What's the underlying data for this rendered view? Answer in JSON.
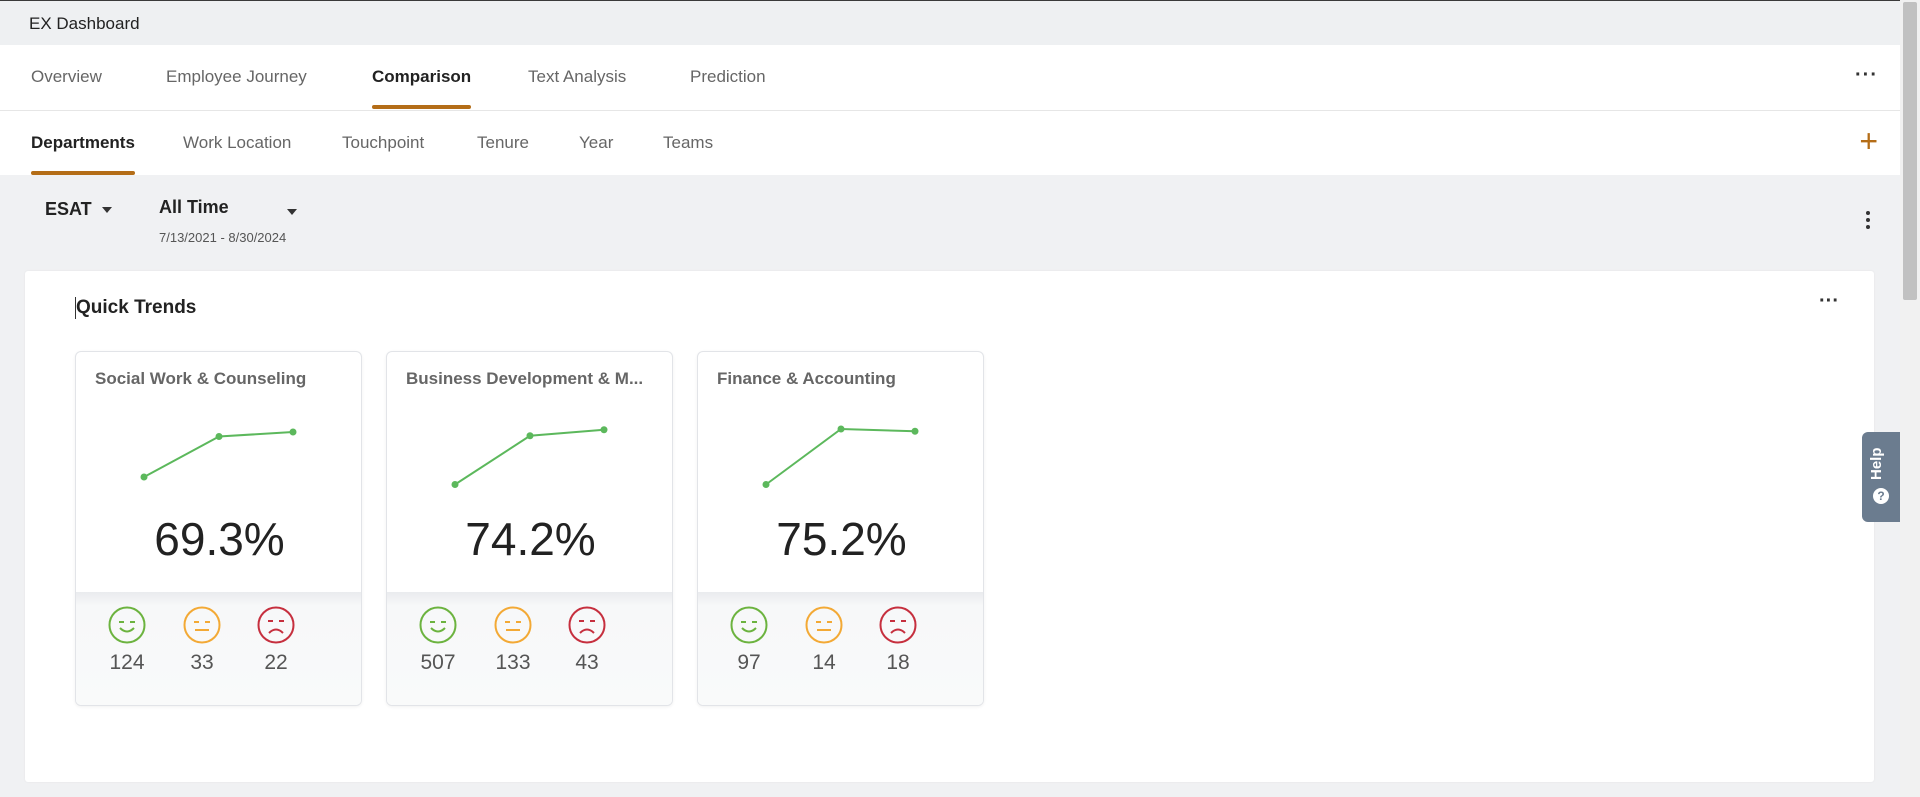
{
  "app": {
    "title": "EX Dashboard"
  },
  "main_tabs": [
    {
      "label": "Overview"
    },
    {
      "label": "Employee Journey"
    },
    {
      "label": "Comparison",
      "active": true
    },
    {
      "label": "Text Analysis"
    },
    {
      "label": "Prediction"
    }
  ],
  "sub_tabs": [
    {
      "label": "Departments",
      "active": true
    },
    {
      "label": "Work Location"
    },
    {
      "label": "Touchpoint"
    },
    {
      "label": "Tenure"
    },
    {
      "label": "Year"
    },
    {
      "label": "Teams"
    }
  ],
  "filters": {
    "metric": "ESAT",
    "time_label": "All Time",
    "date_range": "7/13/2021 - 8/30/2024"
  },
  "quick_trends": {
    "title": "Quick Trends",
    "cards": [
      {
        "name": "Social Work & Counseling",
        "score": "69.3%",
        "trend": [
          0.2,
          0.74,
          0.8
        ],
        "positive": "124",
        "neutral": "33",
        "negative": "22"
      },
      {
        "name": "Business Development & M...",
        "score": "74.2%",
        "trend": [
          0.1,
          0.75,
          0.83
        ],
        "positive": "507",
        "neutral": "133",
        "negative": "43"
      },
      {
        "name": "Finance & Accounting",
        "score": "75.2%",
        "trend": [
          0.1,
          0.84,
          0.81
        ],
        "positive": "97",
        "neutral": "14",
        "negative": "18"
      }
    ]
  },
  "help": {
    "label": "Help"
  },
  "colors": {
    "accent": "#b46d17",
    "trend_line": "#5cb85c",
    "positive": "#6cb33f",
    "neutral": "#f3a935",
    "negative": "#c62f3e"
  }
}
